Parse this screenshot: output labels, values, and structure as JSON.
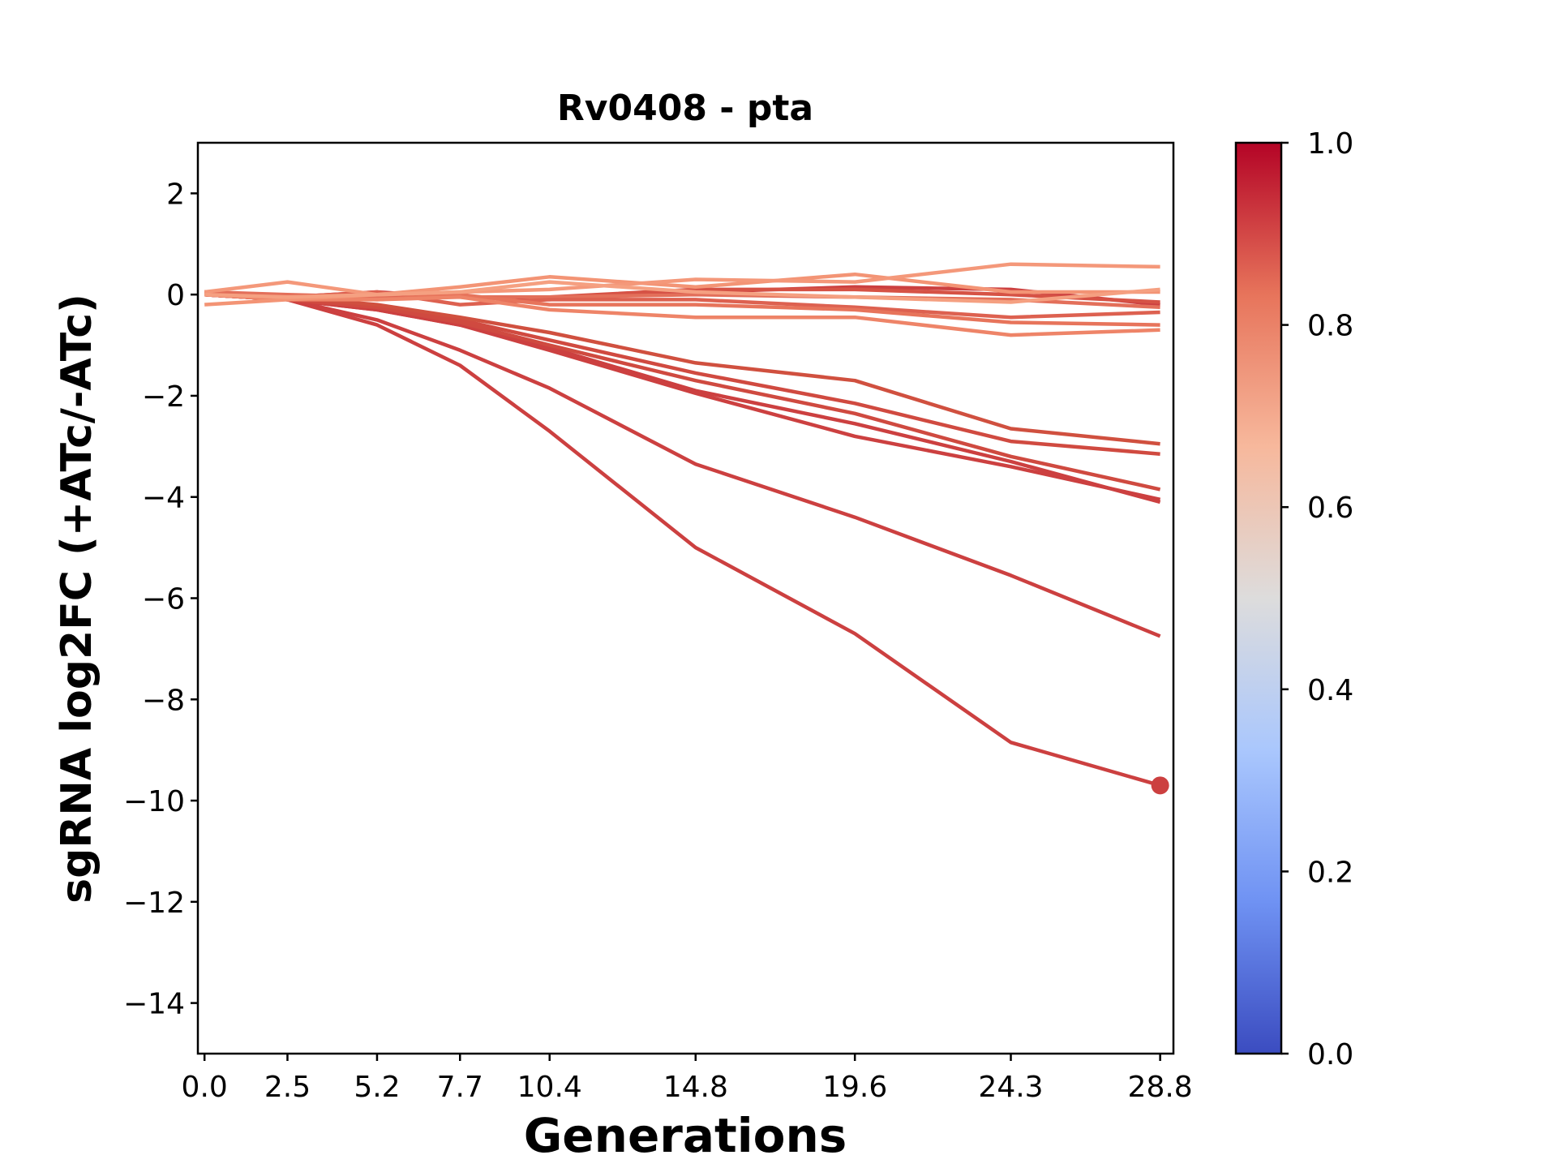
{
  "chart_data": {
    "type": "line",
    "title": "Rv0408 - pta",
    "xlabel": "Generations",
    "ylabel": "sgRNA log2FC (+ATc/-ATc)",
    "xlim": [
      -0.2,
      29.2
    ],
    "ylim": [
      -15,
      3
    ],
    "x": [
      0.0,
      2.5,
      5.2,
      7.7,
      10.4,
      14.8,
      19.6,
      24.3,
      28.8
    ],
    "x_tick_labels": [
      "0.0",
      "2.5",
      "5.2",
      "7.7",
      "10.4",
      "14.8",
      "19.6",
      "24.3",
      "28.8"
    ],
    "y_ticks": [
      2,
      0,
      -2,
      -4,
      -6,
      -8,
      -10,
      -12,
      -14
    ],
    "y_tick_labels": [
      "2",
      "0",
      "−2",
      "−4",
      "−6",
      "−8",
      "−10",
      "−12",
      "−14"
    ],
    "colorbar": {
      "range": [
        0.0,
        1.0
      ],
      "ticks": [
        "1.0",
        "0.8",
        "0.6",
        "0.4",
        "0.2",
        "0.0"
      ],
      "colormap": "coolwarm",
      "colors": [
        "#3b4cc0",
        "#6f92f3",
        "#aac7fd",
        "#dddcdc",
        "#f7b89c",
        "#e7745b",
        "#b40426"
      ]
    },
    "series": [
      {
        "color": "#cc4040",
        "values": [
          0.0,
          -0.1,
          -0.6,
          -1.4,
          -2.7,
          -5.0,
          -6.7,
          -8.85,
          -9.7
        ],
        "end_marker": true
      },
      {
        "color": "#cc4040",
        "values": [
          0.0,
          -0.1,
          -0.5,
          -1.1,
          -1.85,
          -3.35,
          -4.4,
          -5.55,
          -6.75
        ]
      },
      {
        "color": "#cc4040",
        "values": [
          0.0,
          -0.1,
          -0.3,
          -0.6,
          -1.1,
          -1.95,
          -2.8,
          -3.4,
          -4.05
        ]
      },
      {
        "color": "#cc4040",
        "values": [
          0.0,
          -0.1,
          -0.3,
          -0.6,
          -1.05,
          -1.9,
          -2.55,
          -3.3,
          -4.1
        ]
      },
      {
        "color": "#cf4a40",
        "values": [
          0.0,
          -0.1,
          -0.25,
          -0.55,
          -1.0,
          -1.7,
          -2.35,
          -3.2,
          -3.85
        ]
      },
      {
        "color": "#d04a40",
        "values": [
          0.0,
          -0.1,
          -0.25,
          -0.5,
          -0.9,
          -1.55,
          -2.15,
          -2.9,
          -3.15
        ]
      },
      {
        "color": "#d0503f",
        "values": [
          0.0,
          -0.05,
          -0.2,
          -0.45,
          -0.75,
          -1.35,
          -1.7,
          -2.65,
          -2.95
        ]
      },
      {
        "color": "#cc4040",
        "values": [
          0.05,
          -0.05,
          0.05,
          -0.05,
          -0.1,
          0.05,
          0.15,
          0.1,
          -0.2
        ]
      },
      {
        "color": "#d65245",
        "values": [
          0.0,
          -0.05,
          0.0,
          -0.05,
          -0.05,
          0.1,
          0.1,
          0.0,
          -0.15
        ]
      },
      {
        "color": "#e36f5a",
        "values": [
          0.05,
          0.0,
          -0.05,
          -0.05,
          -0.05,
          0.0,
          -0.05,
          -0.1,
          -0.25
        ]
      },
      {
        "color": "#dd6150",
        "values": [
          0.0,
          -0.05,
          0.05,
          -0.2,
          -0.1,
          -0.1,
          -0.25,
          -0.45,
          -0.35
        ]
      },
      {
        "color": "#e7745b",
        "values": [
          0.0,
          -0.05,
          -0.1,
          0.0,
          -0.2,
          -0.2,
          -0.3,
          -0.55,
          -0.6
        ]
      },
      {
        "color": "#ee8468",
        "values": [
          0.0,
          -0.1,
          -0.1,
          -0.05,
          -0.3,
          -0.45,
          -0.45,
          -0.8,
          -0.7
        ]
      },
      {
        "color": "#f39475",
        "values": [
          -0.2,
          -0.1,
          0.0,
          0.15,
          0.35,
          0.15,
          0.4,
          0.05,
          0.05
        ]
      },
      {
        "color": "#f4987a",
        "values": [
          0.05,
          0.25,
          0.0,
          0.05,
          0.1,
          0.3,
          0.25,
          0.6,
          0.55
        ]
      },
      {
        "color": "#f5a081",
        "values": [
          0.0,
          -0.05,
          0.0,
          0.05,
          0.25,
          0.05,
          -0.05,
          -0.15,
          0.1
        ]
      }
    ]
  }
}
